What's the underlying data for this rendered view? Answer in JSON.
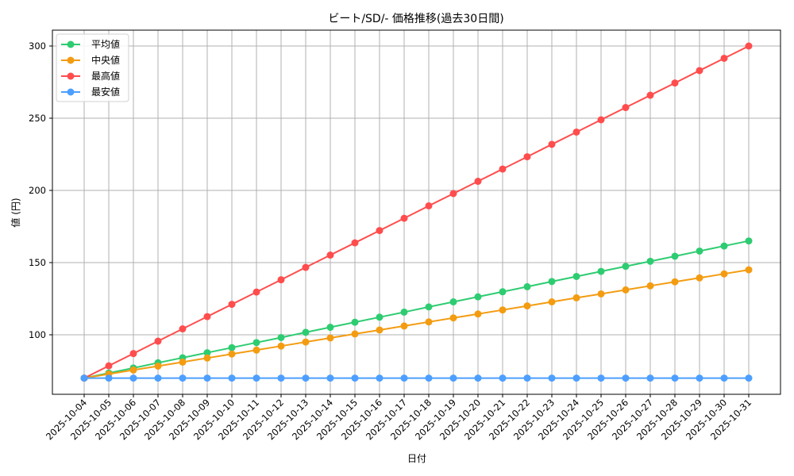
{
  "chart_data": {
    "type": "line",
    "title": "ビート/SD/- 価格推移(過去30日間)",
    "xlabel": "日付",
    "ylabel": "値 (円)",
    "ylim": [
      59,
      311
    ],
    "yticks": [
      100,
      150,
      200,
      250,
      300
    ],
    "grid": true,
    "legend_position": "upper left",
    "x": [
      "2025-10-04",
      "2025-10-05",
      "2025-10-06",
      "2025-10-07",
      "2025-10-08",
      "2025-10-09",
      "2025-10-10",
      "2025-10-11",
      "2025-10-12",
      "2025-10-13",
      "2025-10-14",
      "2025-10-15",
      "2025-10-16",
      "2025-10-17",
      "2025-10-18",
      "2025-10-19",
      "2025-10-20",
      "2025-10-21",
      "2025-10-22",
      "2025-10-23",
      "2025-10-24",
      "2025-10-25",
      "2025-10-26",
      "2025-10-27",
      "2025-10-28",
      "2025-10-29",
      "2025-10-30",
      "2025-10-31"
    ],
    "series": [
      {
        "name": "平均値",
        "color": "#2ecc71",
        "values": [
          70,
          73.5,
          77,
          80.6,
          84.1,
          87.6,
          91.1,
          94.6,
          98.1,
          101.7,
          105.2,
          108.7,
          112.2,
          115.7,
          119.3,
          122.8,
          126.3,
          129.8,
          133.3,
          136.9,
          140.4,
          143.9,
          147.4,
          150.9,
          154.4,
          158,
          161.5,
          165
        ]
      },
      {
        "name": "中央値",
        "color": "#f39c12",
        "values": [
          70,
          72.8,
          75.6,
          78.3,
          81.1,
          83.9,
          86.7,
          89.4,
          92.2,
          95,
          97.8,
          100.6,
          103.3,
          106.1,
          108.9,
          111.7,
          114.4,
          117.2,
          120,
          122.8,
          125.6,
          128.3,
          131.1,
          133.9,
          136.7,
          139.4,
          142.2,
          145
        ]
      },
      {
        "name": "最高値",
        "color": "#ff4d4d",
        "values": [
          70,
          78.5,
          87,
          95.6,
          104.1,
          112.6,
          121.1,
          129.6,
          138.1,
          146.7,
          155.2,
          163.7,
          172.2,
          180.7,
          189.3,
          197.8,
          206.3,
          214.8,
          223.3,
          231.9,
          240.4,
          248.9,
          257.4,
          265.9,
          274.4,
          283,
          291.5,
          300
        ]
      },
      {
        "name": "最安値",
        "color": "#4d9fff",
        "values": [
          70,
          70,
          70,
          70,
          70,
          70,
          70,
          70,
          70,
          70,
          70,
          70,
          70,
          70,
          70,
          70,
          70,
          70,
          70,
          70,
          70,
          70,
          70,
          70,
          70,
          70,
          70,
          70
        ]
      }
    ]
  }
}
